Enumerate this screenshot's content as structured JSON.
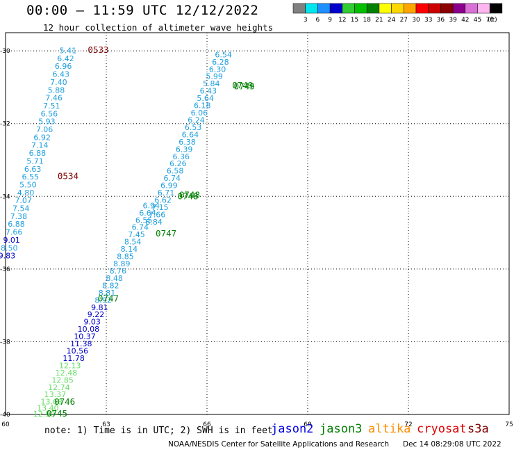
{
  "header": {
    "title": "00:00 – 11:59 UTC 12/12/2022",
    "subtitle": "12 hour collection of altimeter wave heights"
  },
  "colorbar": {
    "unit": "(ft)",
    "ticks": [
      "3",
      "6",
      "9",
      "12",
      "15",
      "18",
      "21",
      "24",
      "27",
      "30",
      "33",
      "36",
      "39",
      "42",
      "45",
      "70"
    ],
    "colors": [
      "#808080",
      "#00e5ee",
      "#1e90ff",
      "#0000cd",
      "#32cd32",
      "#00c000",
      "#008000",
      "#ffff00",
      "#ffd700",
      "#ffa500",
      "#ff0000",
      "#cd0000",
      "#8b0000",
      "#8b008b",
      "#da70d6",
      "#ffb6f0",
      "#000000"
    ]
  },
  "footer": {
    "note": "note: 1) Time is in UTC; 2) SWH is in feet",
    "credit": "NOAA/NESDIS Center for Satellite Applications and Research",
    "timestamp": "Dec 14 08:29:08 UTC 2022"
  },
  "satellites": [
    {
      "name": "jason2",
      "color": "#0000e0"
    },
    {
      "name": "jason3",
      "color": "#008000"
    },
    {
      "name": "altika",
      "color": "#ff8c00"
    },
    {
      "name": "cryosat",
      "color": "#e00000"
    },
    {
      "name": "s3a",
      "color": "#800000"
    }
  ],
  "chart_data": {
    "type": "scatter",
    "title": "00:00 – 11:59 UTC 12/12/2022",
    "subtitle": "12 hour collection of altimeter wave heights",
    "x_ticks": [
      "60",
      "63",
      "66",
      "69",
      "72",
      "75"
    ],
    "y_ticks": [
      "-30",
      "-32",
      "-34",
      "-36",
      "-38",
      "-40"
    ],
    "xlim": [
      60,
      75
    ],
    "ylim": [
      -40,
      -29.5
    ],
    "grid": true,
    "color_levels_ft": [
      3,
      6,
      9,
      12,
      15,
      18,
      21,
      24,
      27,
      30,
      33,
      36,
      39,
      42,
      45,
      70
    ],
    "series": [
      {
        "name": "0533/0534",
        "satellite": "s3a",
        "color": "#800000",
        "points": [
          {
            "lon": 61.86,
            "lat": -29.99,
            "swh": "5.41"
          },
          {
            "lon": 61.79,
            "lat": -30.21,
            "swh": "6.42"
          },
          {
            "lon": 61.72,
            "lat": -30.42,
            "swh": "6.96"
          },
          {
            "lon": 61.65,
            "lat": -30.64,
            "swh": "6.43"
          },
          {
            "lon": 61.58,
            "lat": -30.86,
            "swh": "7.40"
          },
          {
            "lon": 61.51,
            "lat": -31.08,
            "swh": "5.88"
          },
          {
            "lon": 61.44,
            "lat": -31.29,
            "swh": "7.46"
          },
          {
            "lon": 61.37,
            "lat": -31.51,
            "swh": "7.51"
          },
          {
            "lon": 61.3,
            "lat": -31.73,
            "swh": "6.56"
          },
          {
            "lon": 61.23,
            "lat": -31.94,
            "swh": "5.93"
          },
          {
            "lon": 61.16,
            "lat": -32.16,
            "swh": "7.06"
          },
          {
            "lon": 61.09,
            "lat": -32.38,
            "swh": "6.92"
          },
          {
            "lon": 61.02,
            "lat": -32.59,
            "swh": "7.14"
          },
          {
            "lon": 60.95,
            "lat": -32.81,
            "swh": "6.88"
          },
          {
            "lon": 60.88,
            "lat": -33.03,
            "swh": "5.71"
          },
          {
            "lon": 60.81,
            "lat": -33.25,
            "swh": "6.63"
          },
          {
            "lon": 60.74,
            "lat": -33.46,
            "swh": "6.55"
          },
          {
            "lon": 60.67,
            "lat": -33.68,
            "swh": "5.50"
          },
          {
            "lon": 60.6,
            "lat": -33.9,
            "swh": "4.80"
          },
          {
            "lon": 60.53,
            "lat": -34.11,
            "swh": "7.07"
          },
          {
            "lon": 60.46,
            "lat": -34.33,
            "swh": "7.54"
          },
          {
            "lon": 60.39,
            "lat": -34.55,
            "swh": "7.38"
          },
          {
            "lon": 60.32,
            "lat": -34.76,
            "swh": "6.88"
          },
          {
            "lon": 60.25,
            "lat": -34.98,
            "swh": "7.66"
          },
          {
            "lon": 60.18,
            "lat": -35.2,
            "swh": "9.01"
          },
          {
            "lon": 60.11,
            "lat": -35.42,
            "swh": "8.50"
          },
          {
            "lon": 60.04,
            "lat": -35.63,
            "swh": "9.83"
          }
        ],
        "time_labels": [
          {
            "lon": 62.45,
            "lat": -29.98,
            "text": "0533"
          },
          {
            "lon": 61.55,
            "lat": -33.45,
            "text": "0534"
          }
        ]
      },
      {
        "name": "0745-0747",
        "satellite": "jason3",
        "color": "#008000",
        "points": [
          {
            "lon": 64.34,
            "lat": -34.25,
            "swh": "6.94"
          },
          {
            "lon": 64.23,
            "lat": -34.45,
            "swh": "6.64"
          },
          {
            "lon": 64.12,
            "lat": -34.65,
            "swh": "6.55"
          },
          {
            "lon": 64.01,
            "lat": -34.85,
            "swh": "6.74"
          },
          {
            "lon": 63.9,
            "lat": -35.05,
            "swh": "7.45"
          },
          {
            "lon": 63.79,
            "lat": -35.25,
            "swh": "8.54"
          },
          {
            "lon": 63.68,
            "lat": -35.45,
            "swh": "8.14"
          },
          {
            "lon": 63.57,
            "lat": -35.65,
            "swh": "8.85"
          },
          {
            "lon": 63.46,
            "lat": -35.85,
            "swh": "8.89"
          },
          {
            "lon": 63.35,
            "lat": -36.05,
            "swh": "8.76"
          },
          {
            "lon": 63.24,
            "lat": -36.25,
            "swh": "8.48"
          },
          {
            "lon": 63.13,
            "lat": -36.45,
            "swh": "8.82"
          },
          {
            "lon": 63.02,
            "lat": -36.65,
            "swh": "8.81"
          },
          {
            "lon": 62.91,
            "lat": -36.85,
            "swh": "8.92"
          },
          {
            "lon": 62.8,
            "lat": -37.05,
            "swh": "9.81"
          },
          {
            "lon": 62.69,
            "lat": -37.25,
            "swh": "9.22"
          },
          {
            "lon": 62.58,
            "lat": -37.45,
            "swh": "9.03"
          },
          {
            "lon": 62.47,
            "lat": -37.65,
            "swh": "10.08"
          },
          {
            "lon": 62.36,
            "lat": -37.85,
            "swh": "10.37"
          },
          {
            "lon": 62.25,
            "lat": -38.05,
            "swh": "11.38"
          },
          {
            "lon": 62.14,
            "lat": -38.25,
            "swh": "10.56"
          },
          {
            "lon": 62.03,
            "lat": -38.45,
            "swh": "11.78"
          },
          {
            "lon": 61.92,
            "lat": -38.65,
            "swh": "12.13"
          },
          {
            "lon": 61.81,
            "lat": -38.85,
            "swh": "12.48"
          },
          {
            "lon": 61.7,
            "lat": -39.05,
            "swh": "12.85"
          },
          {
            "lon": 61.59,
            "lat": -39.25,
            "swh": "12.74"
          },
          {
            "lon": 61.48,
            "lat": -39.45,
            "swh": "13.37"
          },
          {
            "lon": 61.37,
            "lat": -39.65,
            "swh": "13.68"
          },
          {
            "lon": 61.26,
            "lat": -39.82,
            "swh": "13.40"
          },
          {
            "lon": 61.15,
            "lat": -39.98,
            "swh": "12.90"
          }
        ],
        "time_labels": [
          {
            "lon": 61.22,
            "lat": -39.98,
            "text": "0745"
          },
          {
            "lon": 61.45,
            "lat": -39.66,
            "text": "0746"
          },
          {
            "lon": 62.75,
            "lat": -36.82,
            "text": "0747"
          },
          {
            "lon": 64.47,
            "lat": -35.03,
            "text": "0747"
          },
          {
            "lon": 65.12,
            "lat": -34.0,
            "text": "0748"
          },
          {
            "lon": 65.17,
            "lat": -33.97,
            "text": "0748"
          },
          {
            "lon": 66.75,
            "lat": -30.95,
            "text": "0749"
          },
          {
            "lon": 66.8,
            "lat": -30.98,
            "text": "0749"
          }
        ]
      },
      {
        "name": "0748-0749",
        "satellite": "jason3",
        "color": "#008000",
        "points": [
          {
            "lon": 66.49,
            "lat": -30.1,
            "swh": "6.54"
          },
          {
            "lon": 66.4,
            "lat": -30.3,
            "swh": "6.28"
          },
          {
            "lon": 66.31,
            "lat": -30.5,
            "swh": "6.30"
          },
          {
            "lon": 66.22,
            "lat": -30.7,
            "swh": "5.99"
          },
          {
            "lon": 66.13,
            "lat": -30.9,
            "swh": "5.84"
          },
          {
            "lon": 66.04,
            "lat": -31.1,
            "swh": "6.43"
          },
          {
            "lon": 65.95,
            "lat": -31.3,
            "swh": "5.64"
          },
          {
            "lon": 65.86,
            "lat": -31.5,
            "swh": "6.18"
          },
          {
            "lon": 65.77,
            "lat": -31.7,
            "swh": "6.06"
          },
          {
            "lon": 65.68,
            "lat": -31.9,
            "swh": "6.24"
          },
          {
            "lon": 65.59,
            "lat": -32.1,
            "swh": "6.53"
          },
          {
            "lon": 65.5,
            "lat": -32.3,
            "swh": "6.64"
          },
          {
            "lon": 65.41,
            "lat": -32.5,
            "swh": "6.38"
          },
          {
            "lon": 65.32,
            "lat": -32.7,
            "swh": "6.39"
          },
          {
            "lon": 65.23,
            "lat": -32.9,
            "swh": "6.36"
          },
          {
            "lon": 65.14,
            "lat": -33.1,
            "swh": "6.26"
          },
          {
            "lon": 65.05,
            "lat": -33.3,
            "swh": "6.58"
          },
          {
            "lon": 64.96,
            "lat": -33.5,
            "swh": "6.74"
          },
          {
            "lon": 64.87,
            "lat": -33.7,
            "swh": "6.99"
          },
          {
            "lon": 64.78,
            "lat": -33.9,
            "swh": "6.71"
          },
          {
            "lon": 64.69,
            "lat": -34.1,
            "swh": "6.62"
          },
          {
            "lon": 64.6,
            "lat": -34.3,
            "swh": "7.15"
          },
          {
            "lon": 64.51,
            "lat": -34.5,
            "swh": "7.66"
          },
          {
            "lon": 64.42,
            "lat": -34.7,
            "swh": "8.84"
          }
        ],
        "time_labels": []
      }
    ]
  }
}
